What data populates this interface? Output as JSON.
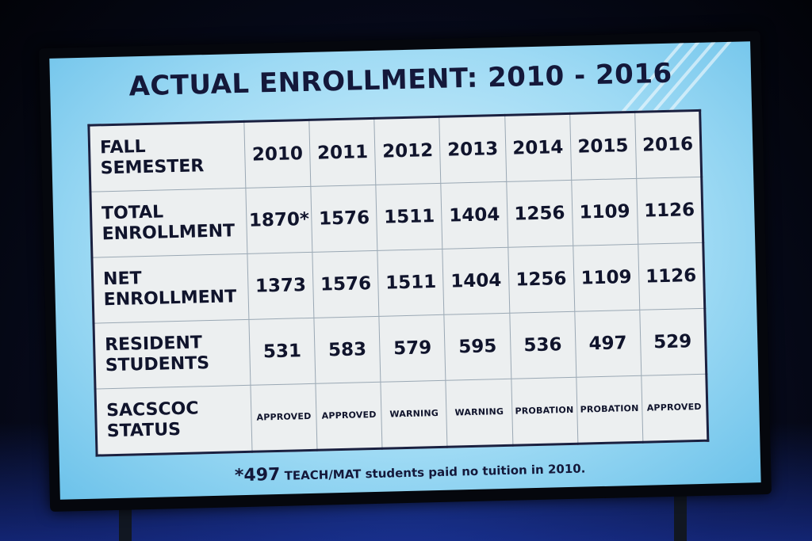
{
  "title": "ACTUAL ENROLLMENT: 2010 - 2016",
  "table": {
    "header_label": [
      "FALL",
      "SEMESTER"
    ],
    "years": [
      "2010",
      "2011",
      "2012",
      "2013",
      "2014",
      "2015",
      "2016"
    ],
    "rows": [
      {
        "label": [
          "TOTAL",
          "ENROLLMENT"
        ],
        "values": [
          "1870*",
          "1576",
          "1511",
          "1404",
          "1256",
          "1109",
          "1126"
        ]
      },
      {
        "label": [
          "NET",
          "ENROLLMENT"
        ],
        "values": [
          "1373",
          "1576",
          "1511",
          "1404",
          "1256",
          "1109",
          "1126"
        ]
      },
      {
        "label": [
          "RESIDENT",
          "STUDENTS"
        ],
        "values": [
          "531",
          "583",
          "579",
          "595",
          "536",
          "497",
          "529"
        ]
      },
      {
        "label": [
          "SACSCOC",
          "STATUS"
        ],
        "values": [
          "APPROVED",
          "APPROVED",
          "WARNING",
          "WARNING",
          "PROBATION",
          "PROBATION",
          "APPROVED"
        ]
      }
    ]
  },
  "footnote": {
    "marker": "*497",
    "text": " TEACH/MAT students paid no tuition in 2010."
  },
  "colors": {
    "screen": "#9edaf4",
    "table_bg": "#eceff0",
    "text": "#10142c"
  }
}
